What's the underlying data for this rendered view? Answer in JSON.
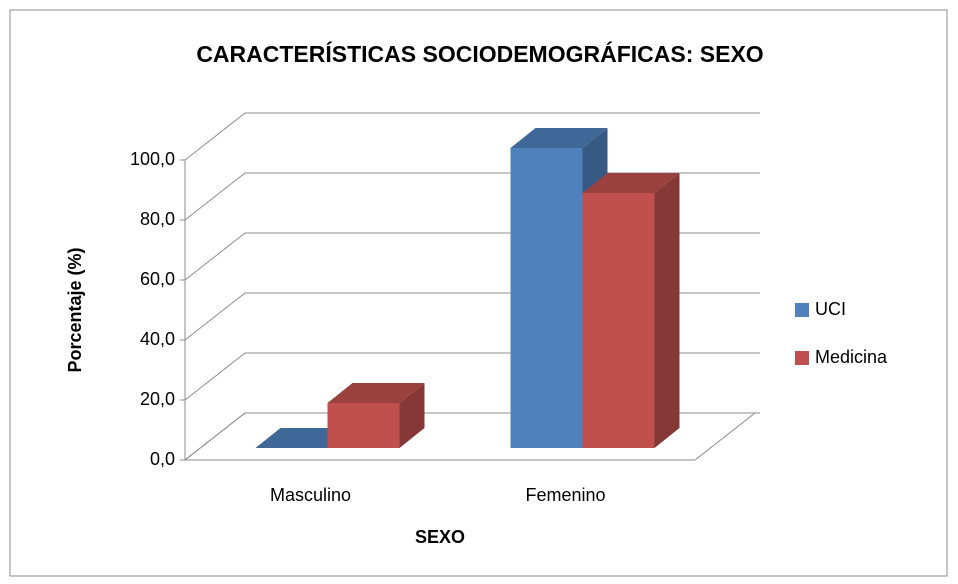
{
  "chart_data": {
    "type": "bar3d",
    "title": "CARACTERÍSTICAS SOCIODEMOGRÁFICAS: SEXO",
    "x_label": "SEXO",
    "y_label": "Porcentaje (%)",
    "categories": [
      "Masculino",
      "Femenino"
    ],
    "series": [
      {
        "name": "UCI",
        "color": "#4f81bd",
        "values": [
          0,
          100
        ]
      },
      {
        "name": "Medicina",
        "color": "#c0504d",
        "values": [
          15,
          85
        ]
      }
    ],
    "ylim": [
      0,
      100
    ],
    "yticks": [
      {
        "value": 0,
        "label": "0,0"
      },
      {
        "value": 20,
        "label": "20,0"
      },
      {
        "value": 40,
        "label": "40,0"
      },
      {
        "value": 60,
        "label": "60,0"
      },
      {
        "value": 80,
        "label": "80,0"
      },
      {
        "value": 100,
        "label": "100,0"
      }
    ],
    "grid": true,
    "legend": "right"
  }
}
